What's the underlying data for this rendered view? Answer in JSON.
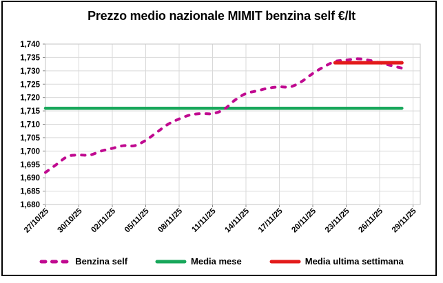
{
  "window": {
    "background_color": "#FFFFFF",
    "border_color": "#000000"
  },
  "chart_data": {
    "type": "line",
    "title": "Prezzo medio nazionale MIMIT benzina self €/lt",
    "xlabel": "",
    "ylabel": "",
    "ylim": [
      1680,
      1740
    ],
    "ytick_step": 5,
    "ytick_labels": [
      "1,680",
      "1,685",
      "1,690",
      "1,695",
      "1,700",
      "1,705",
      "1,710",
      "1,715",
      "1,720",
      "1,725",
      "1,730",
      "1,735",
      "1,740"
    ],
    "xtick_labels": [
      "27/10/25",
      "30/10/25",
      "02/11/25",
      "05/11/25",
      "08/11/25",
      "11/11/25",
      "14/11/25",
      "17/11/25",
      "20/11/25",
      "23/11/25",
      "26/11/25",
      "29/11/25"
    ],
    "days_per_xtick": 3,
    "grid": true,
    "legend_position": "bottom",
    "grid_color": "#D9D9D9",
    "series": [
      {
        "name": "Benzina self",
        "color": "#C00A90",
        "style": "dashed",
        "dates": [
          "27/10/25",
          "28/10/25",
          "29/10/25",
          "30/10/25",
          "31/10/25",
          "01/11/25",
          "02/11/25",
          "03/11/25",
          "04/11/25",
          "05/11/25",
          "06/11/25",
          "07/11/25",
          "08/11/25",
          "09/11/25",
          "10/11/25",
          "11/11/25",
          "12/11/25",
          "13/11/25",
          "14/11/25",
          "15/11/25",
          "16/11/25",
          "17/11/25",
          "18/11/25",
          "19/11/25",
          "20/11/25",
          "21/11/25",
          "22/11/25",
          "23/11/25",
          "24/11/25",
          "25/11/25",
          "26/11/25",
          "27/11/25",
          "28/11/25"
        ],
        "values": [
          1692,
          1695,
          1698,
          1698.5,
          1698.5,
          1700,
          1701,
          1702,
          1702,
          1704,
          1707,
          1710,
          1712,
          1713.5,
          1714,
          1714,
          1715.5,
          1719,
          1721.5,
          1722.5,
          1723.5,
          1724,
          1724,
          1726,
          1729,
          1731.5,
          1733.5,
          1734,
          1734.5,
          1734,
          1733,
          1732,
          1731
        ]
      },
      {
        "name": "Media mese",
        "color": "#18A75B",
        "style": "solid",
        "value": 1716,
        "span_days": [
          0,
          32
        ],
        "span_dates": [
          "27/10/25",
          "28/11/25"
        ]
      },
      {
        "name": "Media ultima settimana",
        "color": "#E31B1B",
        "style": "solid",
        "value": 1733,
        "span_days": [
          26,
          32
        ],
        "span_dates": [
          "22/11/25",
          "28/11/25"
        ]
      }
    ]
  }
}
